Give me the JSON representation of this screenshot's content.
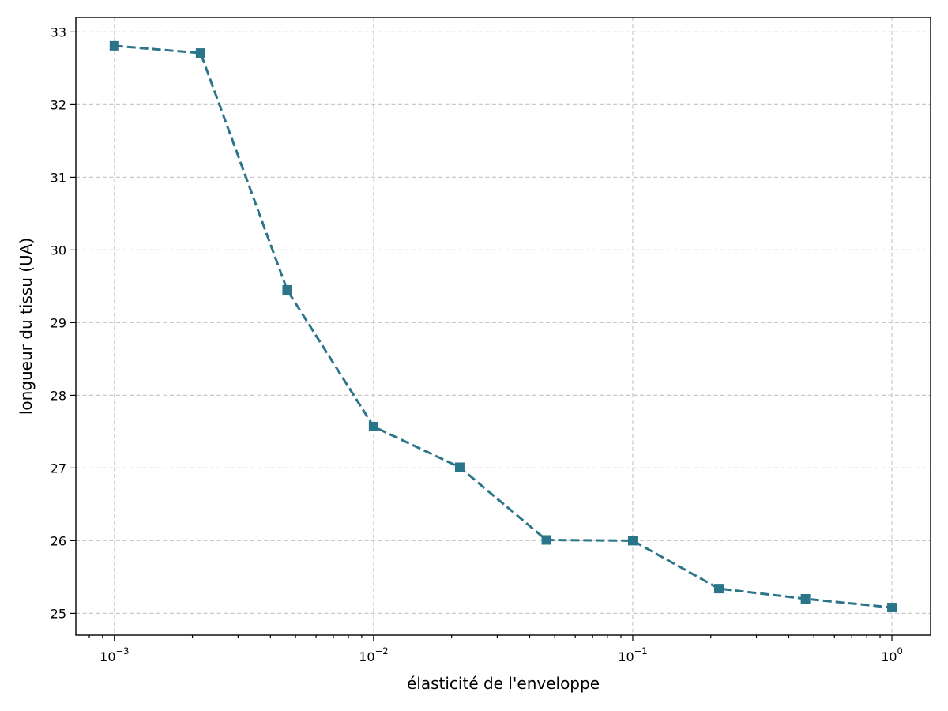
{
  "chart_data": {
    "type": "line",
    "title": "",
    "xlabel": "élasticité de l'enveloppe",
    "ylabel": "longueur du tissu (UA)",
    "xscale": "log",
    "xlim": [
      0.00071,
      1.41
    ],
    "ylim": [
      24.7,
      33.2
    ],
    "grid": true,
    "legend": "none",
    "x_ticks": [
      {
        "value": 0.001,
        "base": "10",
        "exp": "−3"
      },
      {
        "value": 0.01,
        "base": "10",
        "exp": "−2"
      },
      {
        "value": 0.1,
        "base": "10",
        "exp": "−1"
      },
      {
        "value": 1,
        "base": "10",
        "exp": "0"
      }
    ],
    "y_ticks": [
      25,
      26,
      27,
      28,
      29,
      30,
      31,
      32,
      33
    ],
    "series": [
      {
        "color": "#2a7589",
        "line_style": "dashed",
        "marker": "square",
        "x": [
          0.001,
          0.00215,
          0.00464,
          0.01,
          0.0215,
          0.0464,
          0.1,
          0.215,
          0.464,
          1.0
        ],
        "y": [
          32.81,
          32.71,
          29.45,
          27.57,
          27.01,
          26.01,
          26.0,
          25.34,
          25.2,
          25.08
        ]
      }
    ]
  }
}
